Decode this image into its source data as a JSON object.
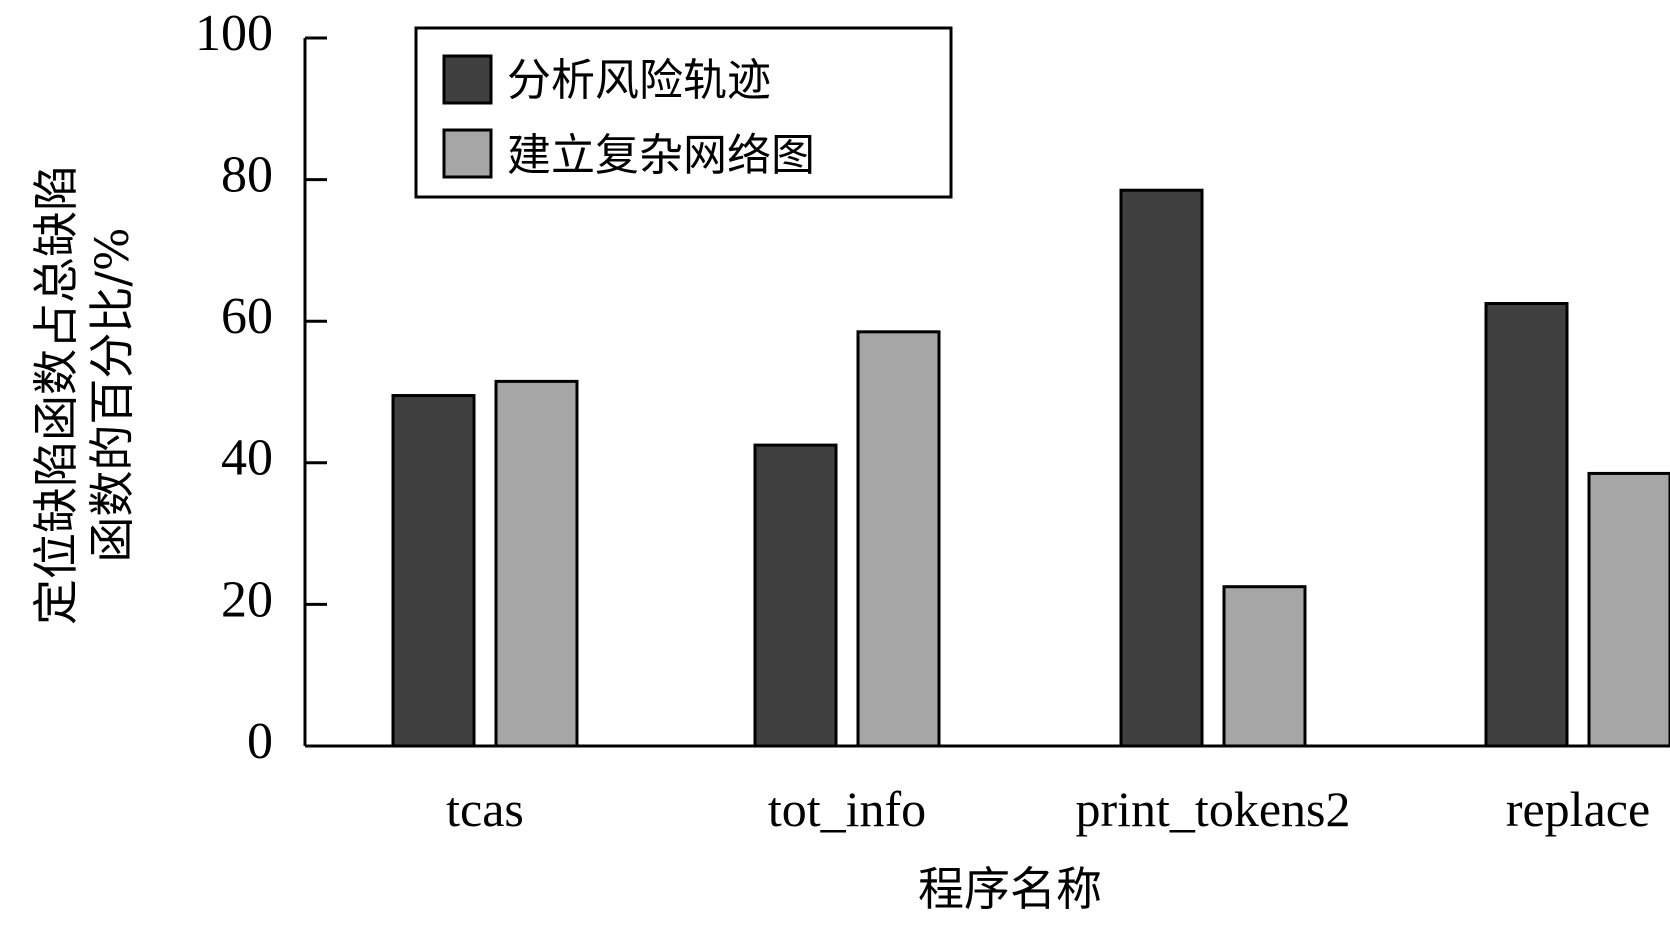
{
  "chart_data": {
    "type": "bar",
    "title": "",
    "xlabel": "程序名称",
    "ylabel_lines": [
      "定位缺陷函数占总缺陷",
      "函数的百分比/%"
    ],
    "categories": [
      "tcas",
      "tot_info",
      "print_tokens2",
      "replace"
    ],
    "series": [
      {
        "name": "分析风险轨迹",
        "color": "#404040",
        "values": [
          49.5,
          42.5,
          78.5,
          62.5
        ]
      },
      {
        "name": "建立复杂网络图",
        "color": "#a6a6a6",
        "values": [
          51.5,
          58.5,
          22.5,
          38.5
        ]
      }
    ],
    "ylim": [
      0,
      100
    ],
    "yticks": [
      0,
      20,
      40,
      60,
      80,
      100
    ],
    "grid": false,
    "legend_position": "top-left"
  }
}
